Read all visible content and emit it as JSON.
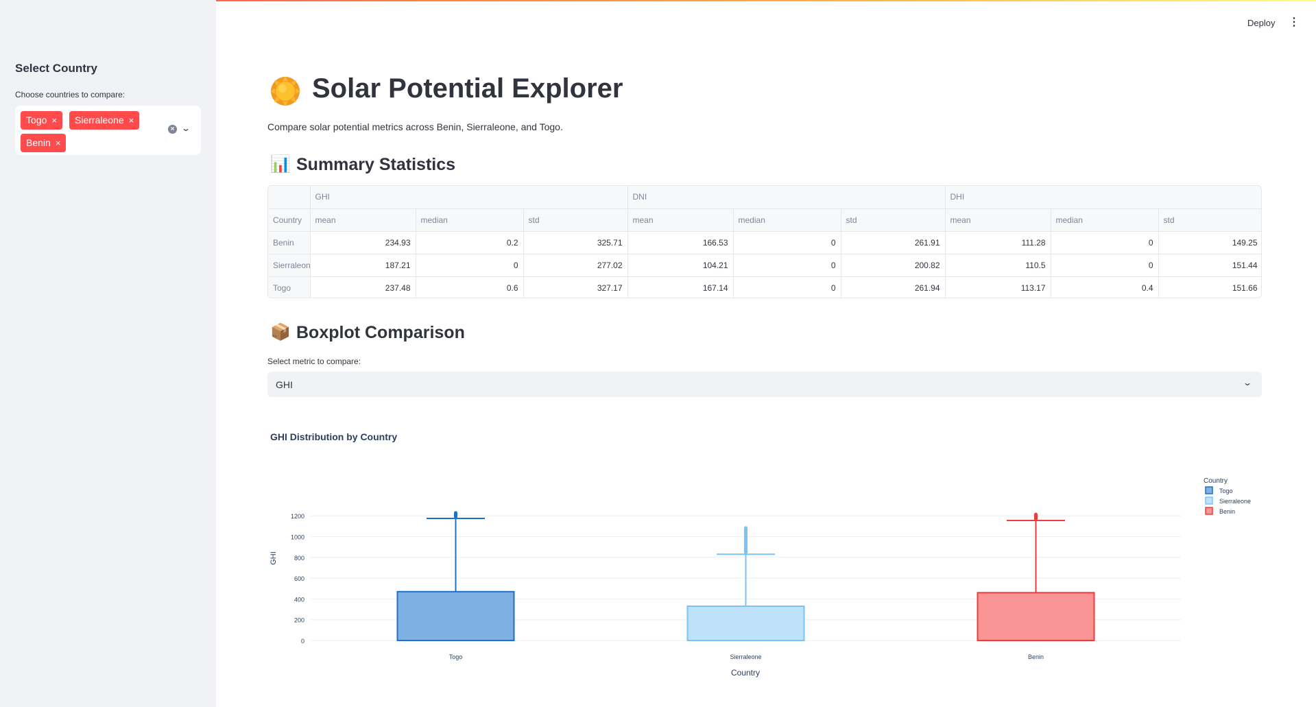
{
  "sidebar": {
    "title": "Select Country",
    "multiselect_label": "Choose countries to compare:",
    "selected": [
      "Togo",
      "Sierraleone",
      "Benin"
    ],
    "chip_remove": "×",
    "clear_icon": "×",
    "dropdown_icon": "chevron-down-icon"
  },
  "header": {
    "deploy": "Deploy",
    "menu_icon": "⋮"
  },
  "title": {
    "icon": "sun-icon",
    "text": "Solar Potential Explorer"
  },
  "subtitle": "Compare solar potential metrics across Benin, Sierraleone, and Togo.",
  "summary": {
    "icon": "📊",
    "heading": "Summary Statistics",
    "groups": [
      "GHI",
      "DNI",
      "DHI"
    ],
    "index_header": "Country",
    "columns": [
      "mean",
      "median",
      "std",
      "mean",
      "median",
      "std",
      "mean",
      "median",
      "std"
    ],
    "rows": [
      {
        "country": "Benin",
        "values": [
          "234.93",
          "0.2",
          "325.71",
          "166.53",
          "0",
          "261.91",
          "111.28",
          "0",
          "149.25"
        ]
      },
      {
        "country": "Sierraleone",
        "values": [
          "187.21",
          "0",
          "277.02",
          "104.21",
          "0",
          "200.82",
          "110.5",
          "0",
          "151.44"
        ]
      },
      {
        "country": "Togo",
        "values": [
          "237.48",
          "0.6",
          "327.17",
          "167.14",
          "0",
          "261.94",
          "113.17",
          "0.4",
          "151.66"
        ]
      }
    ]
  },
  "boxplot": {
    "icon": "📦",
    "heading": "Boxplot Comparison",
    "select_label": "Select metric to compare:",
    "selected_metric": "GHI"
  },
  "chart_data": {
    "type": "box",
    "title": "GHI Distribution by Country",
    "xlabel": "Country",
    "ylabel": "GHI",
    "ylim": [
      0,
      1250
    ],
    "yticks": [
      0,
      200,
      400,
      600,
      800,
      1000,
      1200
    ],
    "legend_title": "Country",
    "legend_position": "top-right",
    "categories": [
      "Togo",
      "Sierraleone",
      "Benin"
    ],
    "series": [
      {
        "name": "Togo",
        "min": 0,
        "q1": 0,
        "median": 0,
        "q3": 470,
        "whisker_high": 1175,
        "outliers_from": 1175,
        "outliers_to": 1245,
        "color": "#1f6fc5",
        "fill": "#7fb0e3"
      },
      {
        "name": "Sierraleone",
        "min": 0,
        "q1": 0,
        "median": 0,
        "q3": 330,
        "whisker_high": 830,
        "outliers_from": 830,
        "outliers_to": 1100,
        "color": "#7cc3f5",
        "fill": "#bfe2fb"
      },
      {
        "name": "Benin",
        "min": 0,
        "q1": 0,
        "median": 0,
        "q3": 460,
        "whisker_high": 1155,
        "outliers_from": 1155,
        "outliers_to": 1230,
        "color": "#ef3b3b",
        "fill": "#fb9494"
      }
    ]
  }
}
